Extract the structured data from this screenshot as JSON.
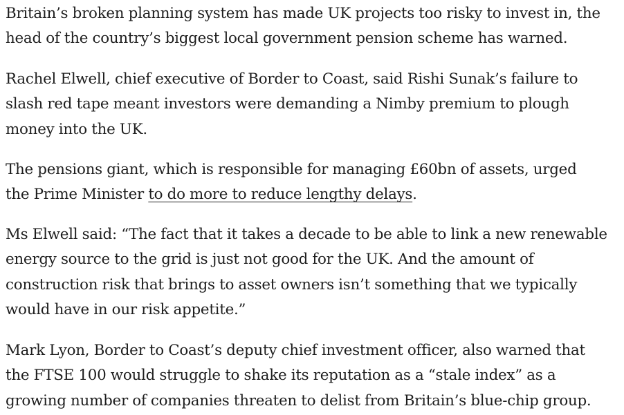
{
  "article": {
    "paragraphs": [
      {
        "lines": [
          "Britain’s broken planning system has made UK projects too risky to invest in, the",
          "head of the country’s biggest local government pension scheme has warned."
        ]
      },
      {
        "lines": [
          "Rachel Elwell, chief executive of Border to Coast, said Rishi Sunak’s failure to",
          "slash red tape meant investors were demanding a Nimby premium to plough",
          "money into the UK."
        ]
      },
      {
        "line1": "The pensions giant, which is responsible for managing £60bn of assets, urged",
        "line2_before": "the Prime Minister ",
        "link_text": "to do more to reduce lengthy delays",
        "line2_after": "."
      },
      {
        "lines": [
          "Ms Elwell said: “The fact that it takes a decade to be able to link a new renewable",
          "energy source to the grid is just not good for the UK. And the amount of",
          "construction risk that brings to asset owners isn’t something that we typically",
          "would have in our risk appetite.”"
        ]
      },
      {
        "lines": [
          "Mark Lyon, Border to Coast’s deputy chief investment officer, also warned that",
          "the FTSE 100 would struggle to shake its reputation as a “stale index” as a",
          "growing number of companies threaten to delist from Britain’s blue-chip group."
        ]
      }
    ]
  }
}
